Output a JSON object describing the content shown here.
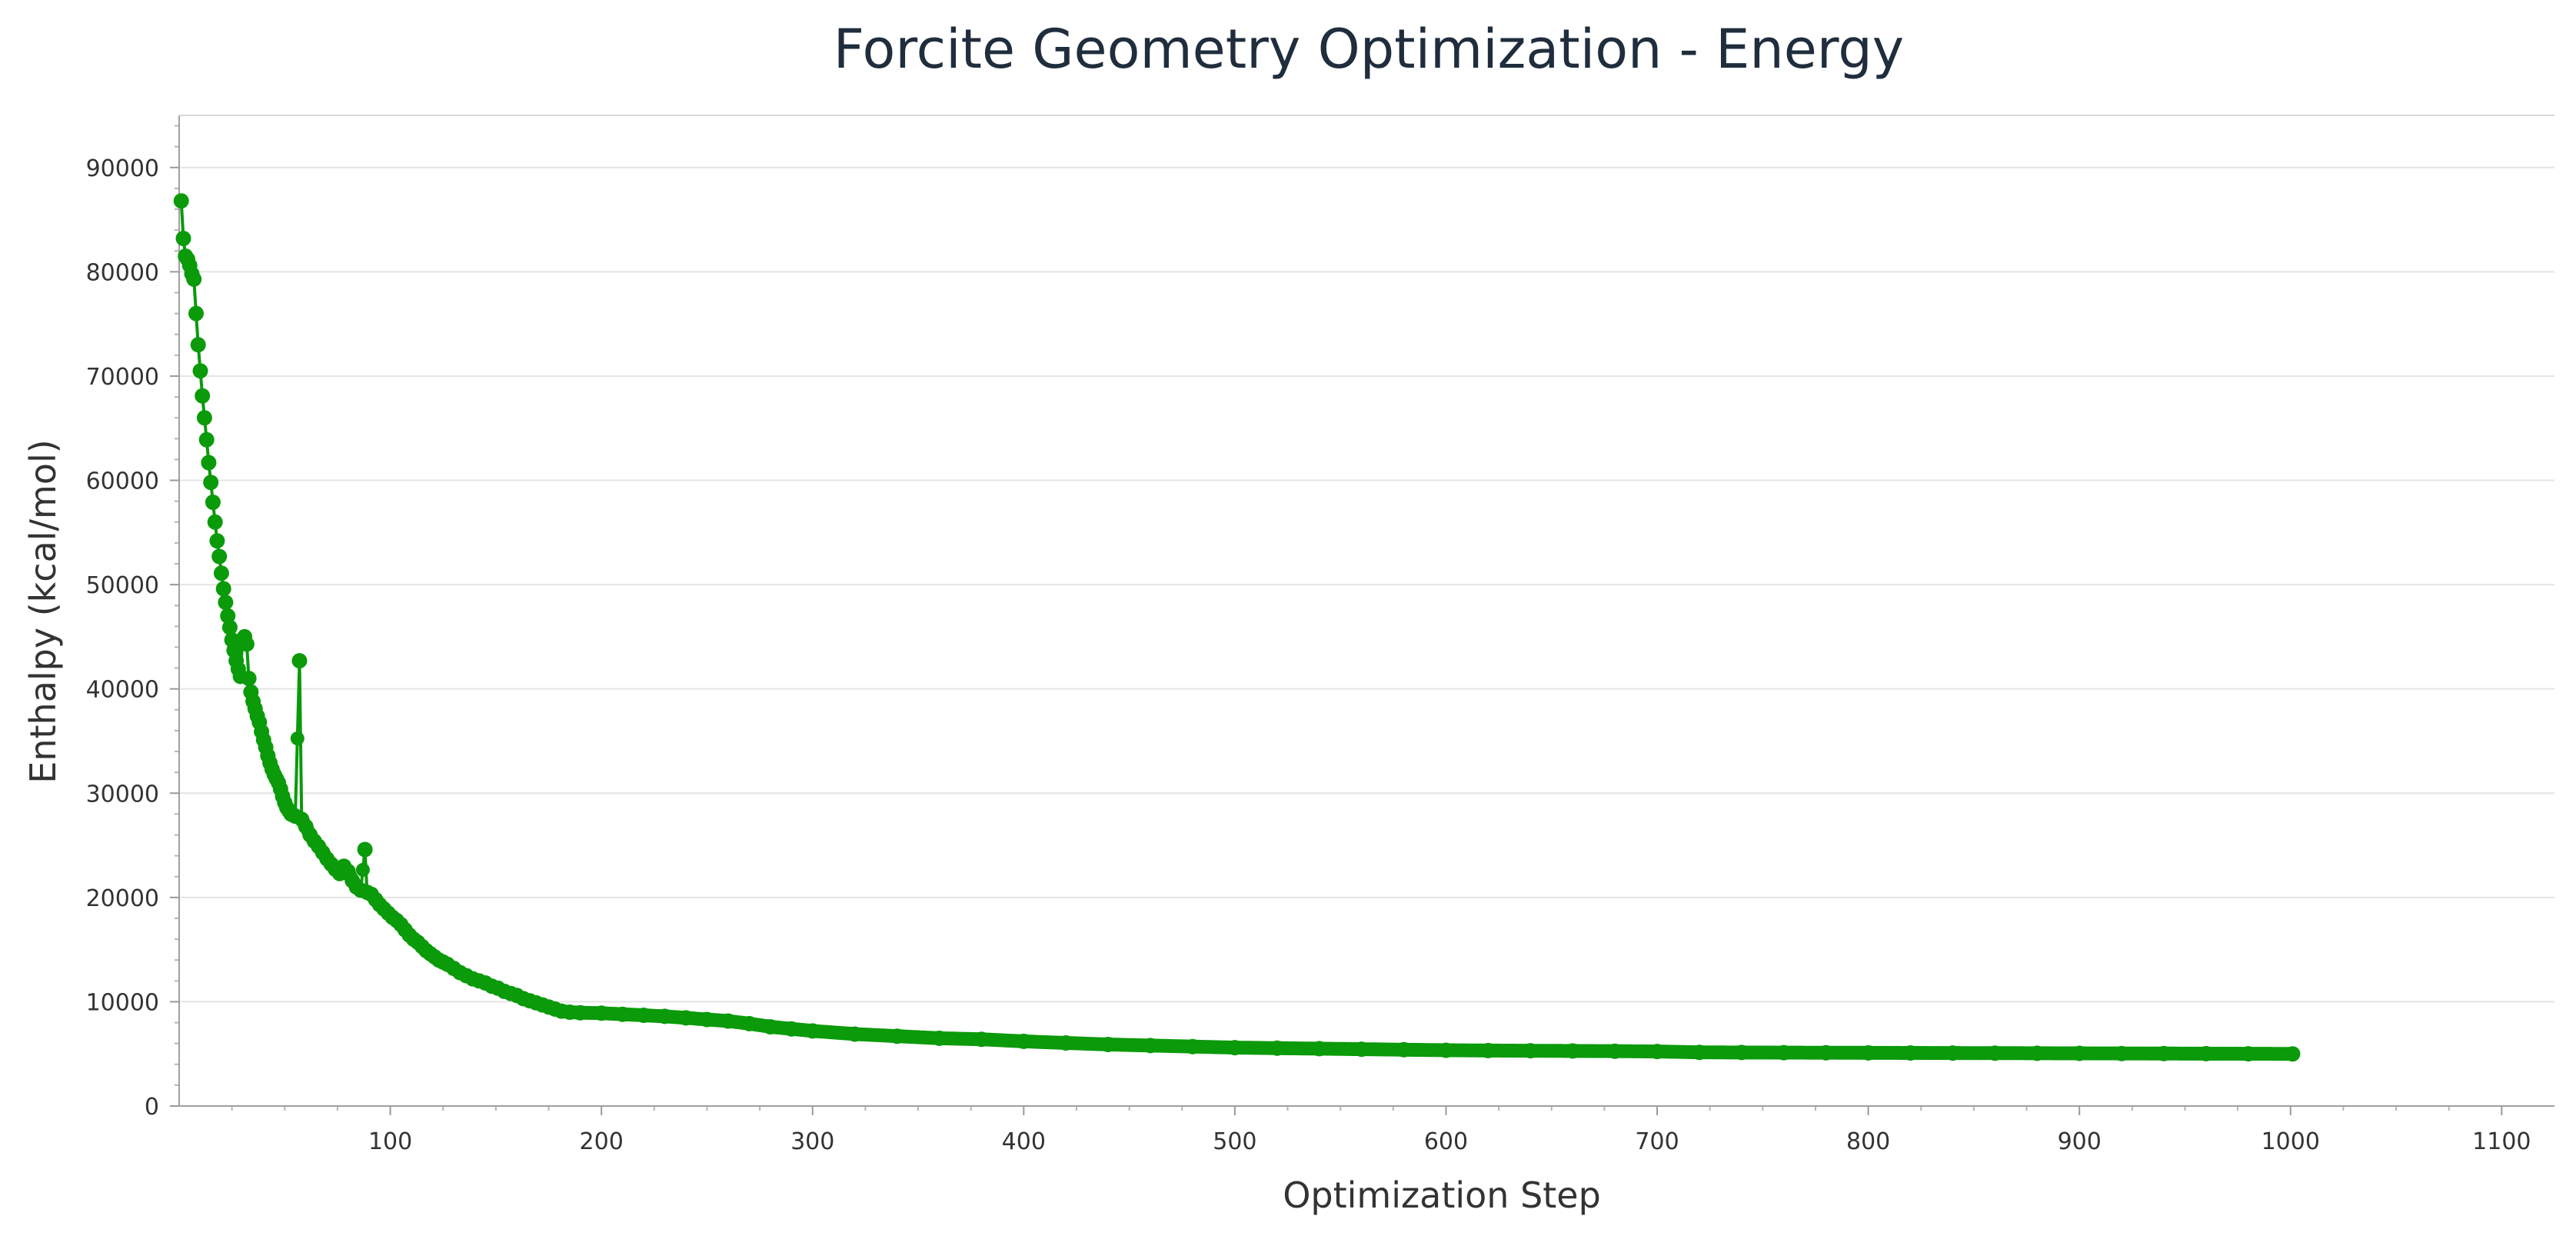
{
  "chart_data": {
    "type": "line",
    "title": "Forcite Geometry Optimization - Energy",
    "xlabel": "Optimization Step",
    "ylabel": "Enthalpy (kcal/mol)",
    "xlim": [
      0,
      1125
    ],
    "ylim": [
      0,
      95000
    ],
    "x_ticks": [
      100,
      200,
      300,
      400,
      500,
      600,
      700,
      800,
      900,
      1000,
      1100
    ],
    "y_ticks": [
      0,
      10000,
      20000,
      30000,
      40000,
      50000,
      60000,
      70000,
      80000,
      90000
    ],
    "grid": true,
    "legend": "none",
    "series_color": "#0a9a0a",
    "series": [
      {
        "name": "Enthalpy",
        "points": [
          [
            1,
            86800
          ],
          [
            2,
            83200
          ],
          [
            3,
            81500
          ],
          [
            4,
            81200
          ],
          [
            5,
            80600
          ],
          [
            6,
            79800
          ],
          [
            7,
            79300
          ],
          [
            8,
            76000
          ],
          [
            9,
            73000
          ],
          [
            10,
            70500
          ],
          [
            11,
            68100
          ],
          [
            12,
            66000
          ],
          [
            13,
            63900
          ],
          [
            14,
            61700
          ],
          [
            15,
            59800
          ],
          [
            16,
            57900
          ],
          [
            17,
            56000
          ],
          [
            18,
            54200
          ],
          [
            19,
            52700
          ],
          [
            20,
            51100
          ],
          [
            21,
            49600
          ],
          [
            22,
            48300
          ],
          [
            23,
            47000
          ],
          [
            24,
            45900
          ],
          [
            25,
            44700
          ],
          [
            26,
            43700
          ],
          [
            27,
            42700
          ],
          [
            28,
            41900
          ],
          [
            29,
            41200
          ],
          [
            30,
            44600
          ],
          [
            31,
            45000
          ],
          [
            32,
            44300
          ],
          [
            33,
            41000
          ],
          [
            34,
            39700
          ],
          [
            35,
            38800
          ],
          [
            36,
            38100
          ],
          [
            37,
            37400
          ],
          [
            38,
            36800
          ],
          [
            39,
            35900
          ],
          [
            40,
            35100
          ],
          [
            41,
            34400
          ],
          [
            42,
            33600
          ],
          [
            43,
            32900
          ],
          [
            44,
            32300
          ],
          [
            45,
            31800
          ],
          [
            46,
            31400
          ],
          [
            47,
            31000
          ],
          [
            48,
            30400
          ],
          [
            49,
            29700
          ],
          [
            50,
            29100
          ],
          [
            51,
            28600
          ],
          [
            52,
            28300
          ],
          [
            53,
            28000
          ],
          [
            54,
            27900
          ],
          [
            55,
            27800
          ],
          [
            57,
            42700
          ],
          [
            58,
            27500
          ],
          [
            60,
            26800
          ],
          [
            62,
            26000
          ],
          [
            64,
            25400
          ],
          [
            66,
            24900
          ],
          [
            68,
            24300
          ],
          [
            70,
            23700
          ],
          [
            72,
            23200
          ],
          [
            74,
            22700
          ],
          [
            76,
            22300
          ],
          [
            78,
            23000
          ],
          [
            80,
            22500
          ],
          [
            82,
            21600
          ],
          [
            84,
            21000
          ],
          [
            86,
            20700
          ],
          [
            88,
            24600
          ],
          [
            89,
            20500
          ],
          [
            91,
            20300
          ],
          [
            93,
            19800
          ],
          [
            95,
            19300
          ],
          [
            97,
            18900
          ],
          [
            99,
            18500
          ],
          [
            101,
            18100
          ],
          [
            103,
            17800
          ],
          [
            105,
            17400
          ],
          [
            107,
            16900
          ],
          [
            109,
            16400
          ],
          [
            111,
            16000
          ],
          [
            113,
            15700
          ],
          [
            115,
            15300
          ],
          [
            117,
            14900
          ],
          [
            119,
            14600
          ],
          [
            121,
            14300
          ],
          [
            123,
            14000
          ],
          [
            125,
            13800
          ],
          [
            127,
            13600
          ],
          [
            130,
            13200
          ],
          [
            133,
            12800
          ],
          [
            136,
            12500
          ],
          [
            139,
            12200
          ],
          [
            142,
            12000
          ],
          [
            145,
            11800
          ],
          [
            148,
            11500
          ],
          [
            151,
            11300
          ],
          [
            154,
            11000
          ],
          [
            157,
            10800
          ],
          [
            160,
            10600
          ],
          [
            163,
            10300
          ],
          [
            166,
            10100
          ],
          [
            169,
            9900
          ],
          [
            172,
            9700
          ],
          [
            175,
            9500
          ],
          [
            178,
            9300
          ],
          [
            181,
            9100
          ],
          [
            185,
            9000
          ],
          [
            190,
            8950
          ],
          [
            200,
            8900
          ],
          [
            210,
            8800
          ],
          [
            220,
            8700
          ],
          [
            230,
            8600
          ],
          [
            240,
            8450
          ],
          [
            250,
            8300
          ],
          [
            260,
            8150
          ],
          [
            270,
            7900
          ],
          [
            280,
            7600
          ],
          [
            290,
            7400
          ],
          [
            300,
            7200
          ],
          [
            320,
            6900
          ],
          [
            340,
            6700
          ],
          [
            360,
            6500
          ],
          [
            380,
            6400
          ],
          [
            400,
            6200
          ],
          [
            420,
            6050
          ],
          [
            440,
            5900
          ],
          [
            460,
            5800
          ],
          [
            480,
            5700
          ],
          [
            500,
            5600
          ],
          [
            520,
            5550
          ],
          [
            540,
            5500
          ],
          [
            560,
            5450
          ],
          [
            580,
            5400
          ],
          [
            600,
            5350
          ],
          [
            620,
            5320
          ],
          [
            640,
            5300
          ],
          [
            660,
            5280
          ],
          [
            680,
            5260
          ],
          [
            700,
            5230
          ],
          [
            720,
            5150
          ],
          [
            740,
            5130
          ],
          [
            760,
            5120
          ],
          [
            780,
            5110
          ],
          [
            800,
            5100
          ],
          [
            820,
            5090
          ],
          [
            840,
            5080
          ],
          [
            860,
            5070
          ],
          [
            880,
            5060
          ],
          [
            900,
            5050
          ],
          [
            920,
            5040
          ],
          [
            940,
            5030
          ],
          [
            960,
            5020
          ],
          [
            980,
            5010
          ],
          [
            1001,
            5000
          ]
        ]
      }
    ]
  }
}
